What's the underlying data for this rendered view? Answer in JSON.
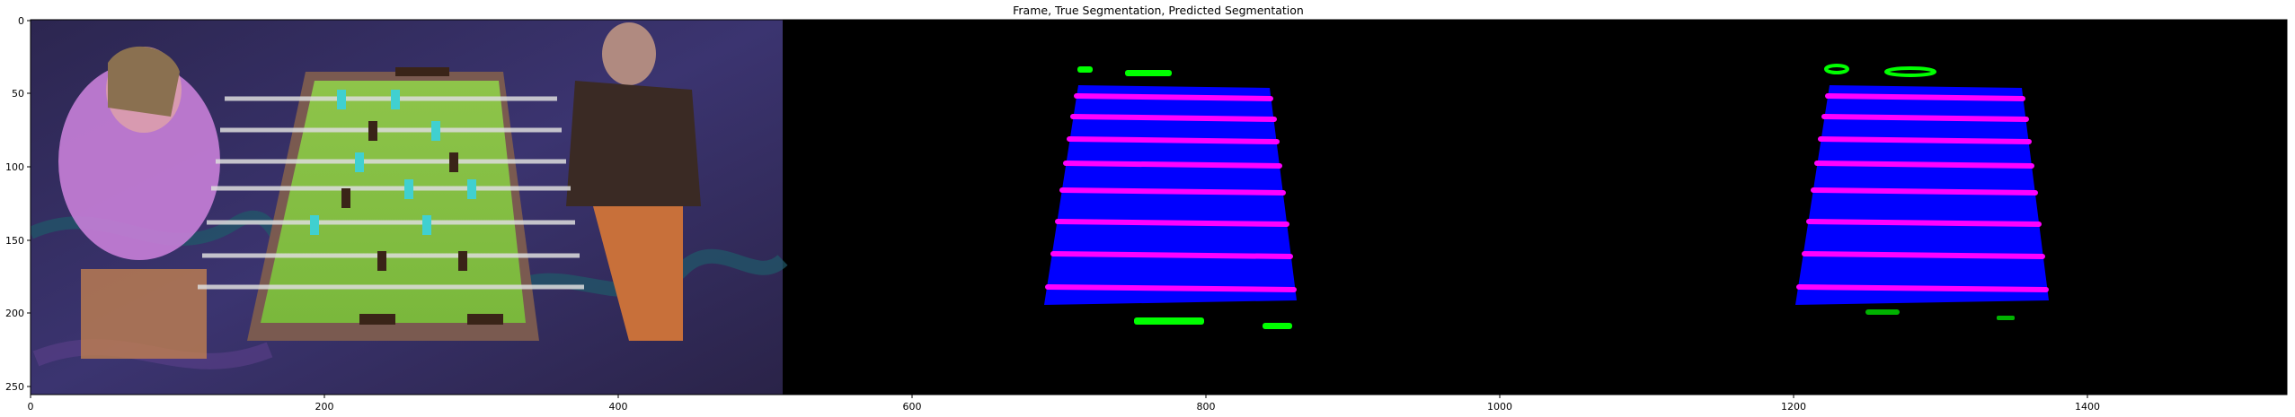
{
  "chart_data": {
    "type": "image",
    "title": "Frame, True Segmentation, Predicted Segmentation",
    "panels": [
      "Frame",
      "True Segmentation",
      "Predicted Segmentation"
    ],
    "image_size": {
      "width": 1536,
      "height": 256
    },
    "xlim": [
      0,
      1536
    ],
    "ylim": [
      256,
      0
    ],
    "xticks": [
      0,
      200,
      400,
      600,
      800,
      1000,
      1200,
      1400
    ],
    "yticks": [
      0,
      50,
      100,
      150,
      200,
      250
    ],
    "grid": false,
    "legend": "none",
    "colors": {
      "table_mask": "#0000ff",
      "rod_mask": "#ff00ff",
      "player_mask": "#00ff00",
      "background": "#000000"
    }
  }
}
